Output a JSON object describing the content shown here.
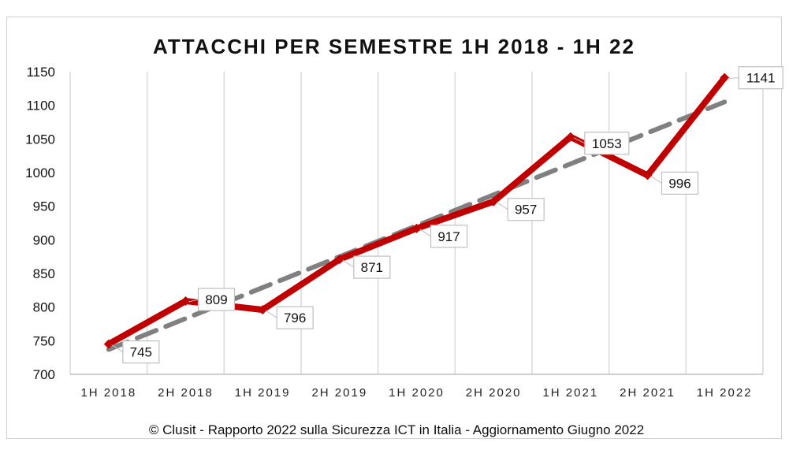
{
  "chart_data": {
    "type": "line",
    "title": "ATTACCHI PER SEMESTRE 1H 2018 - 1H 22",
    "categories": [
      "1H 2018",
      "2H 2018",
      "1H 2019",
      "2H 2019",
      "1H 2020",
      "2H 2020",
      "1H 2021",
      "2H 2021",
      "1H 2022"
    ],
    "series": [
      {
        "values": [
          745,
          809,
          796,
          871,
          917,
          957,
          1053,
          996,
          1141
        ],
        "color": "#c00000",
        "style": "solid",
        "data_labels": true
      },
      {
        "values": [
          737,
          783,
          829,
          875,
          921,
          967,
          1013,
          1059,
          1105
        ],
        "color": "#808080",
        "style": "dashed",
        "kind": "linear-trendline"
      }
    ],
    "ylim": [
      700,
      1150
    ],
    "yticks": [
      700,
      750,
      800,
      850,
      900,
      950,
      1000,
      1050,
      1100,
      1150
    ],
    "grid": "vertical",
    "legend": "none"
  },
  "footer": "© Clusit - Rapporto 2022 sulla Sicurezza ICT in Italia - Aggiornamento Giugno 2022"
}
